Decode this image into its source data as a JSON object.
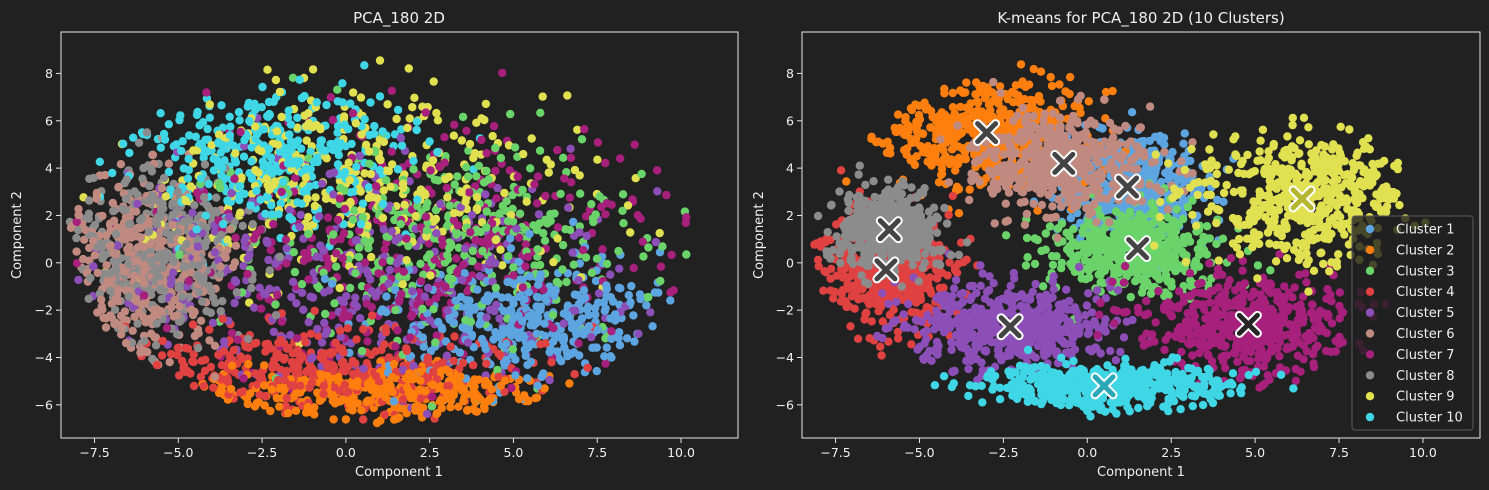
{
  "chart_data": [
    {
      "type": "scatter",
      "title": "PCA_180 2D",
      "xlabel": "Component 1",
      "ylabel": "Component 2",
      "xlim": [
        -8.5,
        11.7
      ],
      "ylim": [
        -7.4,
        9.75
      ],
      "xticks": [
        "-7.5",
        "-5.0",
        "-2.5",
        "0.0",
        "2.5",
        "5.0",
        "7.5",
        "10.0"
      ],
      "yticks": [
        "-6",
        "-4",
        "-2",
        "0",
        "2",
        "4",
        "6",
        "8"
      ],
      "grid": false,
      "legend": "none",
      "colors": [
        "#5da5e0",
        "#ff7f0e",
        "#6ad46a",
        "#e04141",
        "#8c4fb8",
        "#c08a80",
        "#a7207b",
        "#8c8c8c",
        "#e0e050",
        "#3fd6e6"
      ],
      "clusters": [
        {
          "center": [
            5.5,
            -2.5
          ],
          "spread": [
            2.2,
            1.3
          ]
        },
        {
          "center": [
            1.0,
            -5.5
          ],
          "spread": [
            3.0,
            0.6
          ]
        },
        {
          "center": [
            3.0,
            1.0
          ],
          "spread": [
            3.0,
            2.2
          ]
        },
        {
          "center": [
            -1.0,
            -4.5
          ],
          "spread": [
            3.5,
            0.9
          ]
        },
        {
          "center": [
            -0.5,
            -1.0
          ],
          "spread": [
            4.0,
            2.5
          ]
        },
        {
          "center": [
            -6.0,
            0.0
          ],
          "spread": [
            1.2,
            2.0
          ]
        },
        {
          "center": [
            2.0,
            0.5
          ],
          "spread": [
            4.0,
            2.8
          ]
        },
        {
          "center": [
            -5.5,
            0.5
          ],
          "spread": [
            1.3,
            1.8
          ]
        },
        {
          "center": [
            0.5,
            3.5
          ],
          "spread": [
            3.5,
            2.3
          ]
        },
        {
          "center": [
            -2.5,
            4.5
          ],
          "spread": [
            2.0,
            1.5
          ]
        }
      ]
    },
    {
      "type": "scatter",
      "title": "K-means for PCA_180 2D (10 Clusters)",
      "xlabel": "Component 1",
      "ylabel": "Component 2",
      "xlim": [
        -8.5,
        11.7
      ],
      "ylim": [
        -7.4,
        9.75
      ],
      "xticks": [
        "-7.5",
        "-5.0",
        "-2.5",
        "0.0",
        "2.5",
        "5.0",
        "7.5",
        "10.0"
      ],
      "yticks": [
        "-6",
        "-4",
        "-2",
        "0",
        "2",
        "4",
        "6",
        "8"
      ],
      "grid": false,
      "legend": "bottom-right",
      "series": [
        {
          "name": "Cluster 1",
          "color": "#5da5e0",
          "centroid": [
            1.2,
            3.2
          ],
          "spread": [
            1.5,
            1.5
          ]
        },
        {
          "name": "Cluster 2",
          "color": "#ff7f0e",
          "centroid": [
            -3.0,
            5.5
          ],
          "spread": [
            2.0,
            1.5
          ]
        },
        {
          "name": "Cluster 3",
          "color": "#6ad46a",
          "centroid": [
            1.5,
            0.6
          ],
          "spread": [
            1.7,
            1.2
          ]
        },
        {
          "name": "Cluster 4",
          "color": "#e04141",
          "centroid": [
            -6.0,
            -0.3
          ],
          "spread": [
            1.3,
            1.6
          ]
        },
        {
          "name": "Cluster 5",
          "color": "#8c4fb8",
          "centroid": [
            -2.3,
            -2.7
          ],
          "spread": [
            2.0,
            1.2
          ]
        },
        {
          "name": "Cluster 6",
          "color": "#c08a80",
          "centroid": [
            -0.7,
            4.2
          ],
          "spread": [
            1.7,
            1.4
          ]
        },
        {
          "name": "Cluster 7",
          "color": "#a7207b",
          "centroid": [
            4.8,
            -2.6
          ],
          "spread": [
            2.0,
            1.4
          ]
        },
        {
          "name": "Cluster 8",
          "color": "#8c8c8c",
          "centroid": [
            -5.9,
            1.4
          ],
          "spread": [
            1.0,
            1.1
          ]
        },
        {
          "name": "Cluster 9",
          "color": "#e0e050",
          "centroid": [
            6.4,
            2.7
          ],
          "spread": [
            2.0,
            1.8
          ]
        },
        {
          "name": "Cluster 10",
          "color": "#3fd6e6",
          "centroid": [
            0.5,
            -5.2
          ],
          "spread": [
            2.4,
            0.6
          ]
        }
      ]
    }
  ]
}
